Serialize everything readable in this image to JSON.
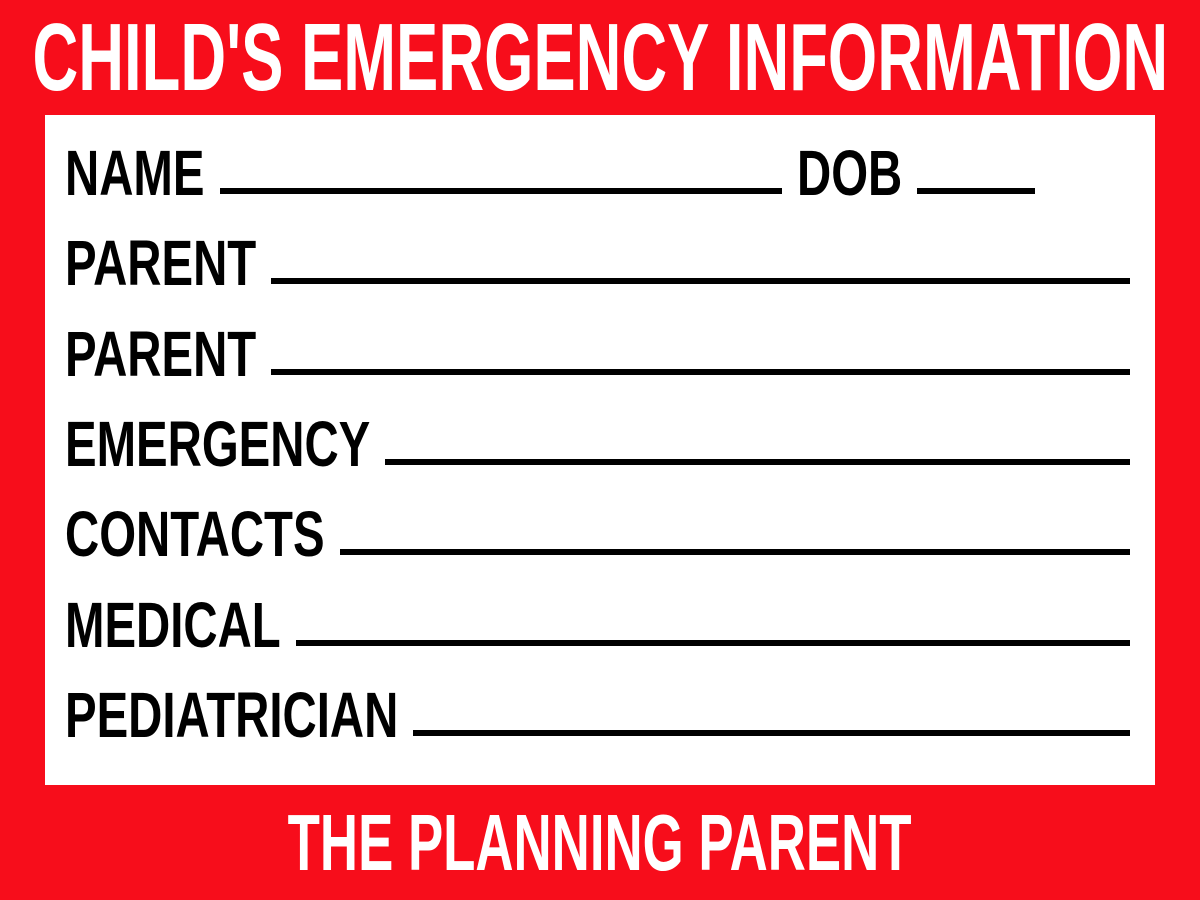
{
  "header": {
    "title": "CHILD'S EMERGENCY INFORMATION"
  },
  "card": {
    "rows": [
      {
        "label": "NAME",
        "dob_label": "DOB"
      },
      {
        "label": "PARENT"
      },
      {
        "label": "PARENT"
      },
      {
        "label": "EMERGENCY"
      },
      {
        "label": "CONTACTS"
      },
      {
        "label": "MEDICAL"
      },
      {
        "label": "PEDIATRICIAN"
      }
    ]
  },
  "footer": {
    "brand": "THE PLANNING PARENT"
  },
  "colors": {
    "background": "#f70d1b",
    "card": "#ffffff",
    "ink": "#000000",
    "band_text": "#ffffff"
  }
}
